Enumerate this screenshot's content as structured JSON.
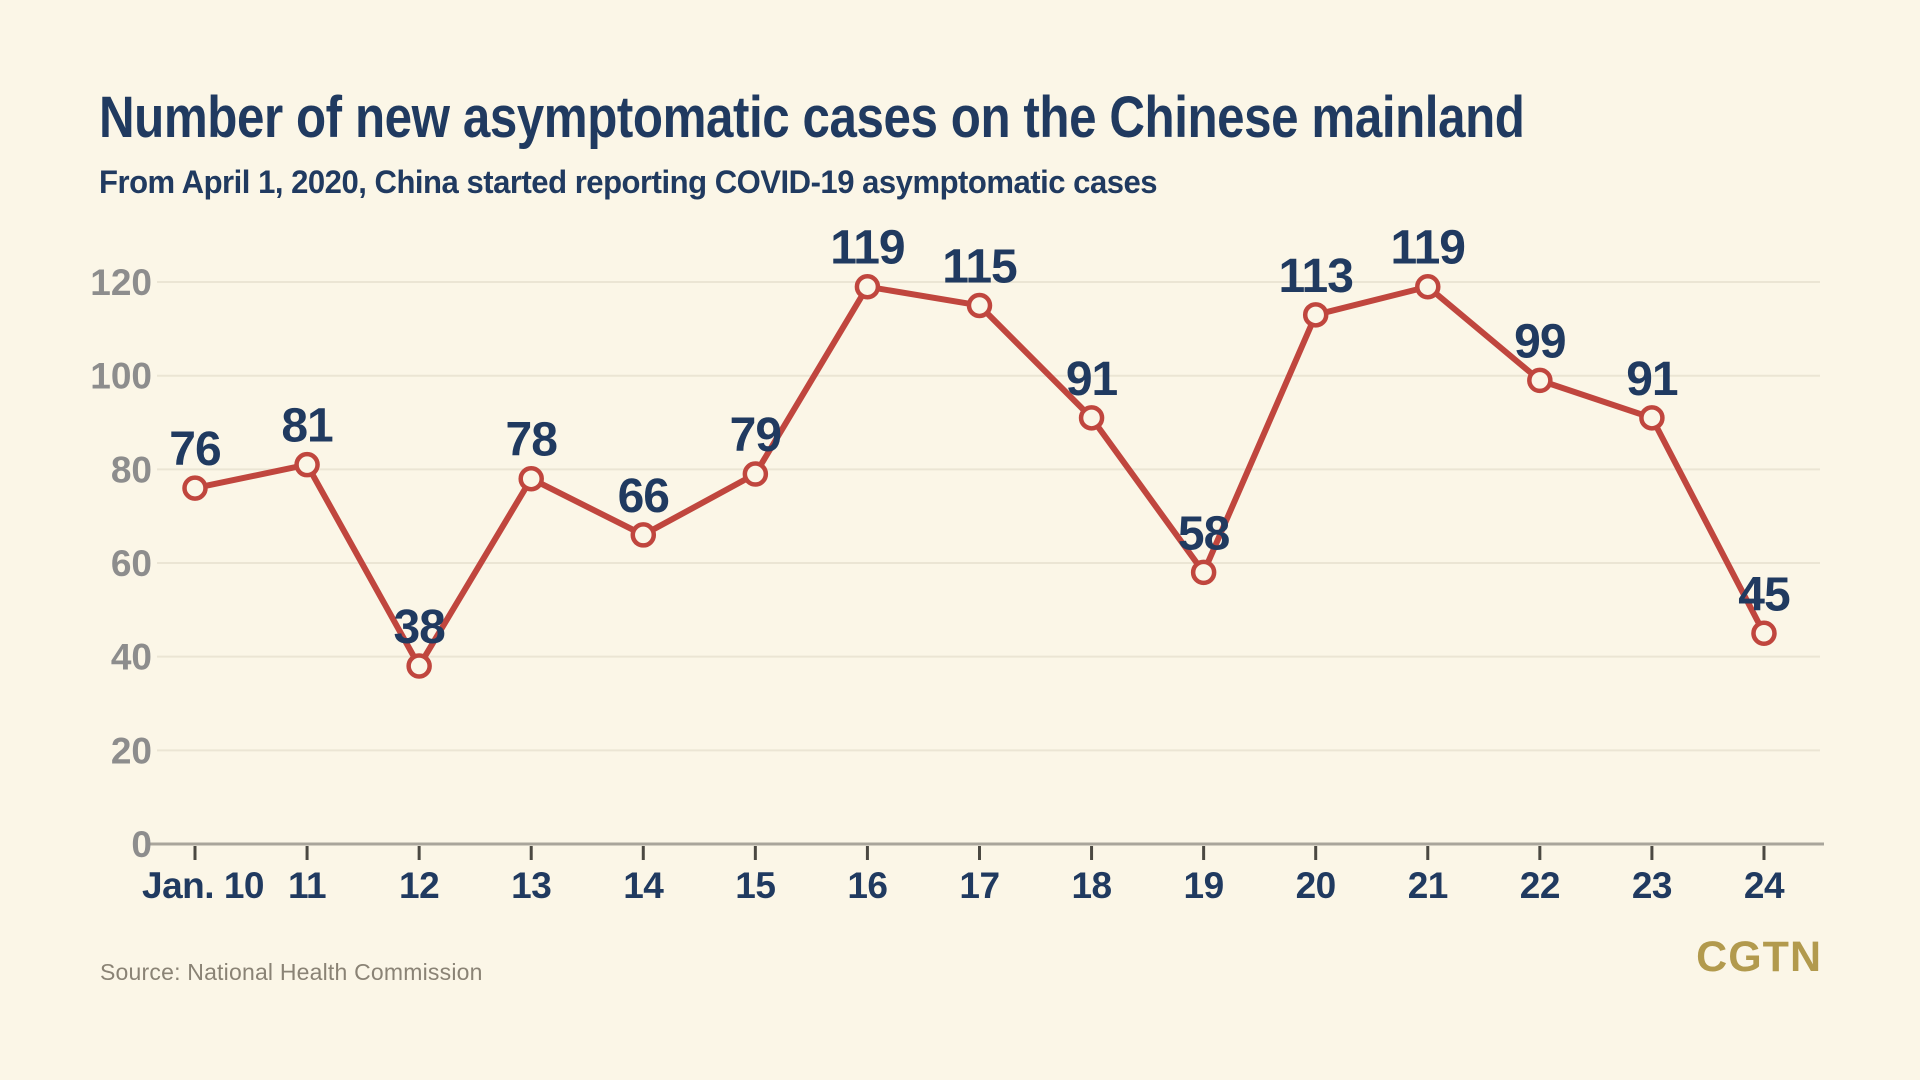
{
  "chart_data": {
    "type": "line",
    "title": "Number of new asymptomatic cases on the Chinese mainland",
    "subtitle": "From April 1, 2020, China started reporting COVID-19 asymptomatic cases",
    "source": "Source: National Health Commission",
    "categories": [
      "Jan. 10",
      "11",
      "12",
      "13",
      "14",
      "15",
      "16",
      "17",
      "18",
      "19",
      "20",
      "21",
      "22",
      "23",
      "24"
    ],
    "values": [
      76,
      81,
      38,
      78,
      66,
      79,
      119,
      115,
      91,
      58,
      113,
      119,
      99,
      91,
      45
    ],
    "ylim": [
      0,
      120
    ],
    "yticks": [
      0,
      20,
      40,
      60,
      80,
      100,
      120
    ],
    "grid": "horizontal",
    "legend": "none",
    "marker": "open-circle",
    "colors": {
      "background": "#fbf6e7",
      "line": "#c0463e",
      "text": "#203a60",
      "axis_text": "#8d8d8d",
      "gridline": "#ebe5d4",
      "axis_line": "#a9a59b",
      "tick": "#4b4942"
    }
  },
  "branding": {
    "logo_text": "CGTN",
    "logo_color": "#b29a4d"
  }
}
